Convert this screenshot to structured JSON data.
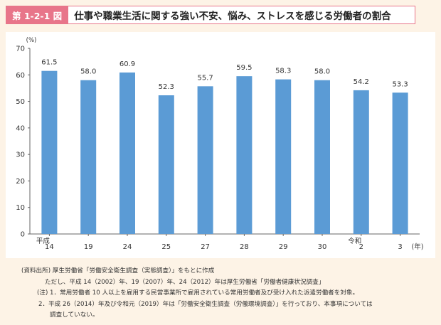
{
  "header": {
    "label": "第 1-2-1 図",
    "title": "仕事や職業生活に関する強い不安、悩み、ストレスを感じる労働者の割合"
  },
  "chart_data": {
    "type": "bar",
    "categories": [
      "14",
      "19",
      "24",
      "25",
      "27",
      "28",
      "29",
      "30",
      "2",
      "3"
    ],
    "era_labels": [
      "平成",
      "",
      "",
      "",
      "",
      "",
      "",
      "",
      "令和",
      ""
    ],
    "values": [
      61.5,
      58.0,
      60.9,
      52.3,
      55.7,
      59.5,
      58.3,
      58.0,
      54.2,
      53.3
    ],
    "value_labels": [
      "61.5",
      "58.0",
      "60.9",
      "52.3",
      "55.7",
      "59.5",
      "58.3",
      "58.0",
      "54.2",
      "53.3"
    ],
    "ylim": [
      0,
      70
    ],
    "yticks": [
      0,
      10,
      20,
      30,
      40,
      50,
      60,
      70
    ],
    "y_unit": "(%)",
    "x_unit": "(年)",
    "grid": false,
    "bar_color": "#5b9bd5"
  },
  "notes": {
    "source": "(資料出所) 厚生労働省「労働安全衛生調査（実態調査）」をもとに作成",
    "source_cont": "ただし、平成 14（2002）年、19（2007）年、24（2012）年は厚生労働省「労働者健康状況調査」",
    "note1": "(注) 1．常用労働者 10 人以上を雇用する民営事業所で雇用されている常用労働者及び受け入れた派遣労働者を対象。",
    "note2": "2．平成 26（2014）年及び令和元（2019）年は「労働安全衛生調査（労働環境調査）」を行っており、本事項については",
    "note2_cont": "調査していない。"
  }
}
